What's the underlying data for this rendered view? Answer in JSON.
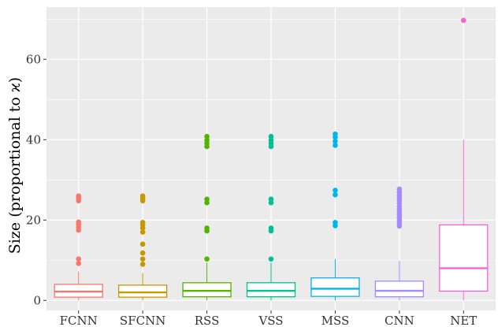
{
  "chart_data": {
    "type": "box",
    "title": "",
    "xlabel": "",
    "ylabel": "Size (proportional to ϰ)",
    "ylim": [
      -2.5,
      73
    ],
    "yticks": [
      0,
      20,
      40,
      60
    ],
    "grid": true,
    "legend": "none",
    "categories": [
      "FCNN",
      "SFCNN",
      "RSS",
      "VSS",
      "MSS",
      "CNN",
      "NET"
    ],
    "series": [
      {
        "category": "FCNN",
        "color": "#f8766d",
        "whisker_low": 0.0,
        "q1": 0.8,
        "median": 2.2,
        "q3": 4.0,
        "whisker_high": 7.2,
        "outliers": [
          9.2,
          10.3,
          17.5,
          18.2,
          18.9,
          19.5,
          24.8,
          25.4,
          26.0
        ]
      },
      {
        "category": "SFCNN",
        "color": "#c49a00",
        "whisker_low": 0.0,
        "q1": 0.8,
        "median": 2.0,
        "q3": 3.8,
        "whisker_high": 6.8,
        "outliers": [
          9.0,
          10.3,
          11.8,
          14.0,
          17.0,
          18.0,
          18.8,
          19.4,
          24.8,
          25.4,
          26.0
        ]
      },
      {
        "category": "RSS",
        "color": "#53b400",
        "whisker_low": 0.0,
        "q1": 0.9,
        "median": 2.4,
        "q3": 4.4,
        "whisker_high": 9.4,
        "outliers": [
          10.3,
          17.3,
          18.0,
          24.3,
          25.2,
          38.3,
          39.1,
          39.9,
          40.8
        ]
      },
      {
        "category": "VSS",
        "color": "#00c094",
        "whisker_low": 0.0,
        "q1": 0.9,
        "median": 2.4,
        "q3": 4.4,
        "whisker_high": 9.4,
        "outliers": [
          10.3,
          17.3,
          18.0,
          24.3,
          25.2,
          38.3,
          39.1,
          39.9,
          40.8
        ]
      },
      {
        "category": "MSS",
        "color": "#00b6eb",
        "whisker_low": 0.0,
        "q1": 1.0,
        "median": 2.9,
        "q3": 5.6,
        "whisker_high": 10.3,
        "outliers": [
          18.6,
          19.4,
          26.3,
          27.4,
          38.6,
          39.6,
          40.6,
          41.4
        ]
      },
      {
        "category": "CNN",
        "color": "#a58aff",
        "whisker_low": 0.0,
        "q1": 0.9,
        "median": 2.4,
        "q3": 4.8,
        "whisker_high": 9.8,
        "outliers": [
          18.5,
          19.2,
          19.9,
          20.6,
          21.3,
          22.0,
          22.7,
          23.4,
          24.1,
          24.8,
          25.5,
          26.2,
          26.9,
          27.7
        ]
      },
      {
        "category": "NET",
        "color": "#fb61d7",
        "whisker_low": 0.0,
        "q1": 2.3,
        "median": 8.0,
        "q3": 18.8,
        "whisker_high": 40.0,
        "outliers": [
          69.7
        ]
      }
    ]
  }
}
